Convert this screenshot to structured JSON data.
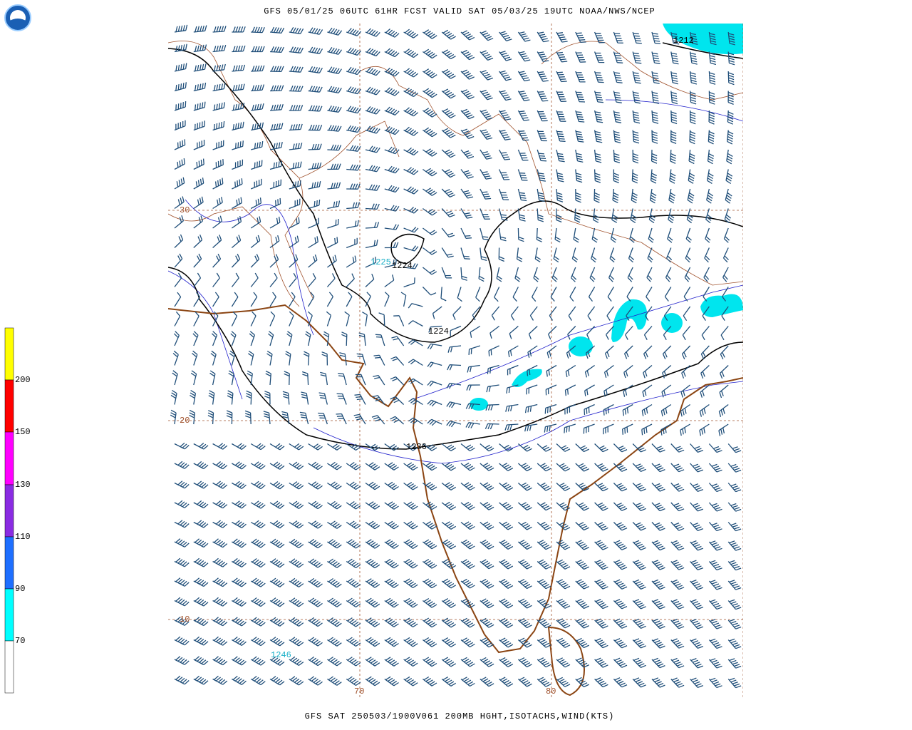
{
  "header": {
    "title": "GFS 05/01/25 06UTC 61HR FCST VALID SAT 05/03/25 19UTC NOAA/NWS/NCEP"
  },
  "footer": {
    "caption": "GFS SAT 250503/1900V061 200MB HGHT,ISOTACHS,WIND(KTS)"
  },
  "colorbar": {
    "labels": [
      "200",
      "150",
      "130",
      "110",
      "90",
      "70"
    ]
  },
  "map": {
    "latitude_labels": [
      "30",
      "20",
      "10"
    ],
    "longitude_labels": [
      "70",
      "80"
    ],
    "contour_labels": [
      "1212",
      "1224",
      "1224",
      "1236"
    ],
    "max_labels": [
      "1225",
      "1246"
    ]
  }
}
